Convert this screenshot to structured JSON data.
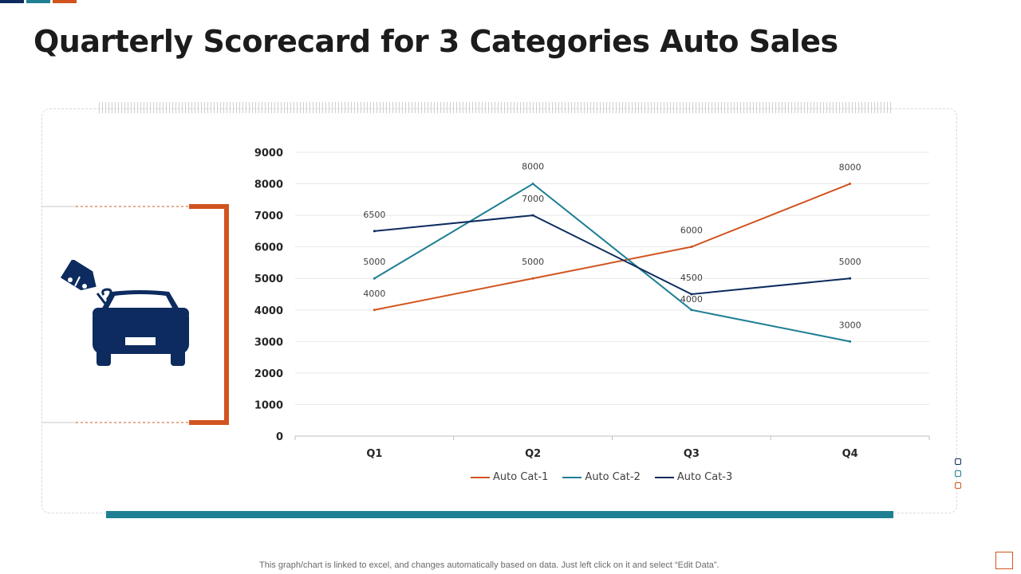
{
  "title": "Quarterly Scorecard for 3 Categories Auto Sales",
  "colors": {
    "navy": "#0d2b5e",
    "teal": "#1e7f93",
    "orange": "#d1541f",
    "grid": "#e8e8e8",
    "text": "#404040"
  },
  "icon": "car-price-tag-icon",
  "chart_data": {
    "type": "line",
    "categories": [
      "Q1",
      "Q2",
      "Q3",
      "Q4"
    ],
    "ylim": [
      0,
      9000
    ],
    "yticks": [
      "0",
      "1000",
      "2000",
      "3000",
      "4000",
      "5000",
      "6000",
      "7000",
      "8000",
      "9000"
    ],
    "grid": true,
    "legend_position": "bottom",
    "series": [
      {
        "name": "Auto Cat-1",
        "color": "#d1541f",
        "values": [
          4000,
          5000,
          6000,
          8000
        ]
      },
      {
        "name": "Auto Cat-2",
        "color": "#1e7f93",
        "values": [
          5000,
          8000,
          4000,
          3000
        ]
      },
      {
        "name": "Auto Cat-3",
        "color": "#0d2b5e",
        "values": [
          6500,
          7000,
          4500,
          5000
        ]
      }
    ]
  },
  "footnote": "This graph/chart is linked to excel,  and changes automatically based on data. Just left click on it and select “Edit Data”."
}
